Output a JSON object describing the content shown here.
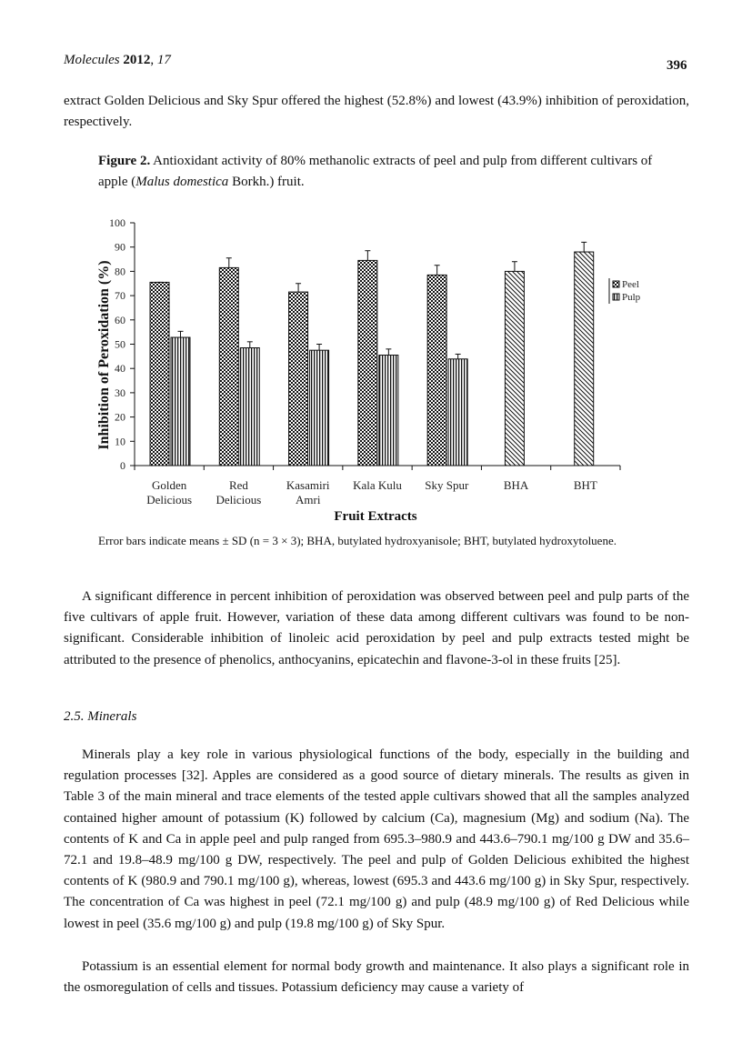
{
  "header": {
    "journal_name": "Molecules",
    "year": "2012",
    "volume": "17",
    "page_number": "396"
  },
  "intro_paragraph": "extract Golden Delicious and Sky Spur offered the highest (52.8%) and lowest (43.9%) inhibition of peroxidation, respectively.",
  "figure": {
    "label": "Figure 2.",
    "caption_before": "Antioxidant activity of 80% methanolic extracts of peel and pulp from different cultivars of apple (",
    "caption_italic": "Malus domestica",
    "caption_after": " Borkh.) fruit.",
    "note": "Error bars indicate means ± SD (n = 3 × 3); BHA, butylated hydroxyanisole; BHT, butylated hydroxytoluene."
  },
  "chart_data": {
    "type": "bar",
    "xlabel": "Fruit Extracts",
    "ylabel": "Inhibition of Peroxidation (%)",
    "ylim": [
      0,
      100
    ],
    "yticks": [
      0,
      10,
      20,
      30,
      40,
      50,
      60,
      70,
      80,
      90,
      100
    ],
    "categories": [
      [
        "Golden",
        "Delicious"
      ],
      [
        "Red",
        "Delicious"
      ],
      [
        "Kasamiri",
        "Amri"
      ],
      [
        "Kala Kulu"
      ],
      [
        "Sky Spur"
      ],
      [
        "BHA"
      ],
      [
        "BHT"
      ]
    ],
    "legend_position": "right",
    "series": [
      {
        "name": "Peel",
        "pattern": "checker",
        "values": [
          75.5,
          81.5,
          71.5,
          84.5,
          78.5,
          80,
          88
        ],
        "errors": [
          0,
          4,
          3.5,
          4,
          4,
          4,
          4
        ]
      },
      {
        "name": "Pulp",
        "pattern": "vertical",
        "values": [
          52.8,
          48.5,
          47.5,
          45.5,
          43.9,
          null,
          null
        ],
        "errors": [
          2.5,
          2.5,
          2.5,
          2.5,
          2,
          0,
          0
        ]
      }
    ]
  },
  "paragraph_after_figure": "A significant difference in percent inhibition of peroxidation was observed between peel and pulp parts of the five cultivars of apple fruit. However, variation of these data among different cultivars was found to be non-significant. Considerable inhibition of linoleic acid peroxidation by peel and pulp extracts tested might be attributed to the presence of phenolics, anthocyanins, epicatechin and flavone-3-ol in these fruits [25].",
  "section_heading": "2.5. Minerals",
  "minerals_paragraph": "Minerals play a key role in various physiological functions of the body, especially in the building and regulation processes [32]. Apples are considered as a good source of dietary minerals. The results as given in Table 3 of the main mineral and trace elements of the tested apple cultivars showed that all the samples analyzed contained higher amount of potassium (K) followed by calcium (Ca), magnesium (Mg) and sodium (Na). The contents of K and Ca in apple peel and pulp ranged from 695.3–980.9 and 443.6–790.1 mg/100 g DW and 35.6–72.1 and 19.8–48.9 mg/100 g DW, respectively. The peel and pulp of Golden Delicious exhibited the highest contents of K (980.9 and 790.1 mg/100 g), whereas, lowest (695.3 and 443.6 mg/100 g) in Sky Spur, respectively. The concentration of Ca was highest in peel (72.1 mg/100 g) and pulp (48.9 mg/100 g) of Red Delicious while lowest in peel (35.6 mg/100 g) and pulp (19.8 mg/100 g) of Sky Spur.",
  "potassium_paragraph": "Potassium is an essential element for normal body growth and maintenance. It also plays a significant role in the osmoregulation of cells and tissues. Potassium deficiency may cause a variety of"
}
